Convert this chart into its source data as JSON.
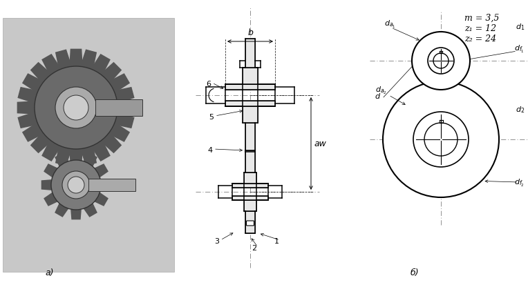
{
  "label_a": "a)",
  "label_b": "б)",
  "params_text": [
    "m = 3,5",
    "z₁ = 12",
    "z₂ = 24"
  ],
  "bg_color": "#ffffff",
  "line_color": "#000000",
  "gray_photo": "#c8c8c8",
  "gray_dark": "#555555",
  "gray_mid": "#888888",
  "gray_light": "#cccccc",
  "hatch_col": "#999999",
  "centerline_color": "#888888"
}
